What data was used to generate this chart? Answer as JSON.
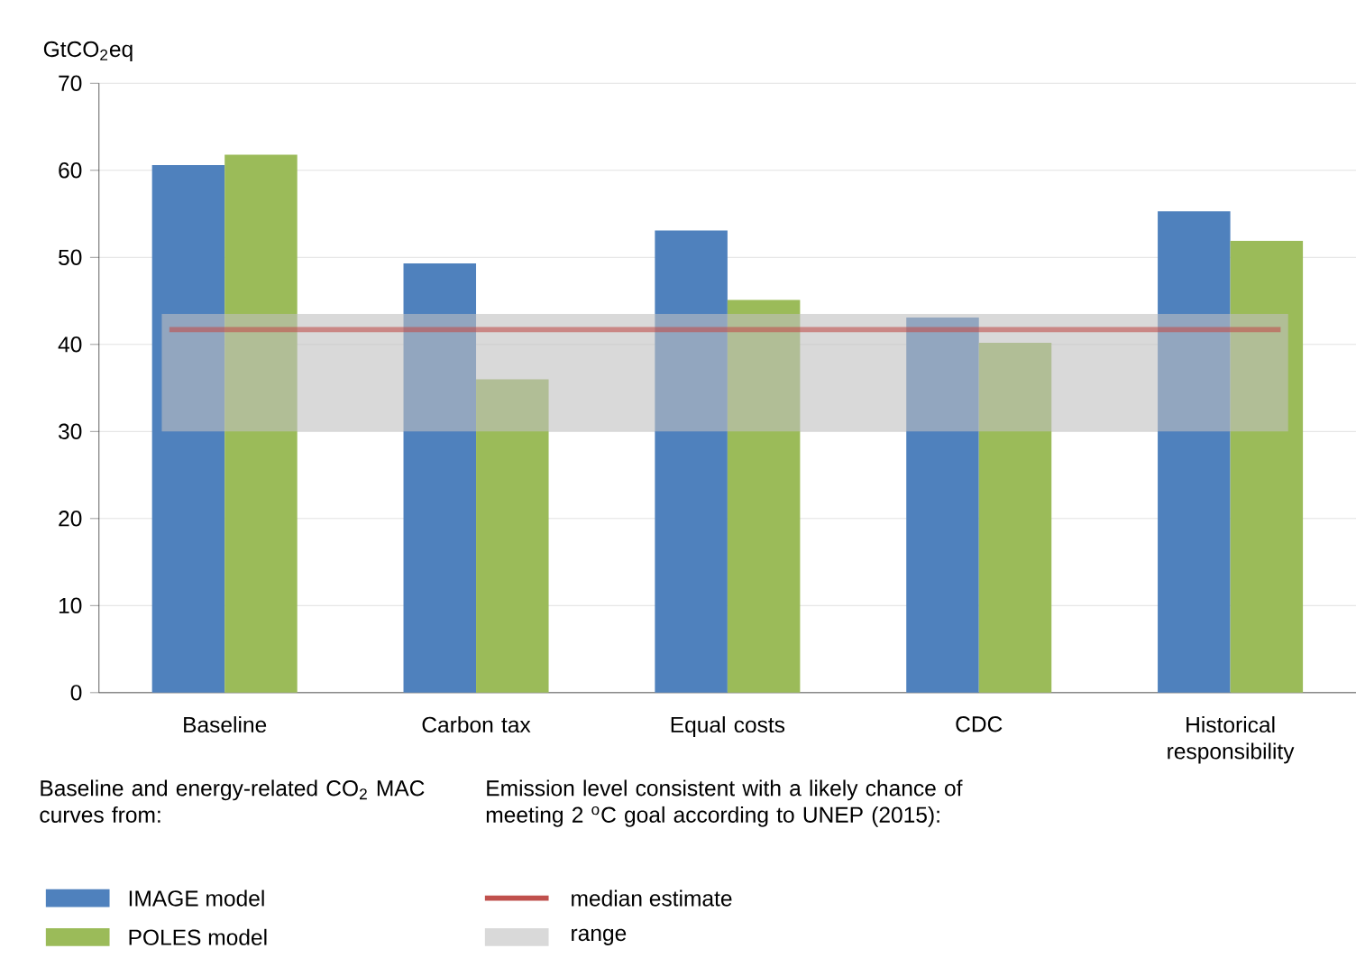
{
  "chart_data": {
    "type": "bar",
    "ylabel": "GtCO$_{2}$eq",
    "categories": [
      "Baseline",
      "Carbon tax",
      "Equal costs",
      "CDC",
      "Historical responsibility"
    ],
    "series": [
      {
        "name": "IMAGE model",
        "color": "#4f81bd",
        "values": [
          60.6,
          49.3,
          53.1,
          43.1,
          55.3
        ]
      },
      {
        "name": "POLES model",
        "color": "#9bbb59",
        "values": [
          61.8,
          36.0,
          45.1,
          40.2,
          51.9
        ]
      }
    ],
    "ylim": [
      0,
      70
    ],
    "yticks": [
      0,
      10,
      20,
      30,
      40,
      50,
      60,
      70
    ],
    "grid": "y",
    "legend": "bottom",
    "legend_title": "Baseline and energy-related CO$_{2}$ MAC curves from:",
    "annotations": [
      "Emission level consistent with a likely chance of meeting 2 $^{o}$C goal according to UNEP (2015):"
    ],
    "ref_lines": [
      {
        "axis": "y",
        "value": 41.7,
        "label": "median estimate",
        "color": "#c0504d"
      }
    ],
    "bands": [
      {
        "axis": "y",
        "from": 30,
        "to": 43.5,
        "label": "range",
        "color": "#bfbfbf"
      }
    ]
  }
}
